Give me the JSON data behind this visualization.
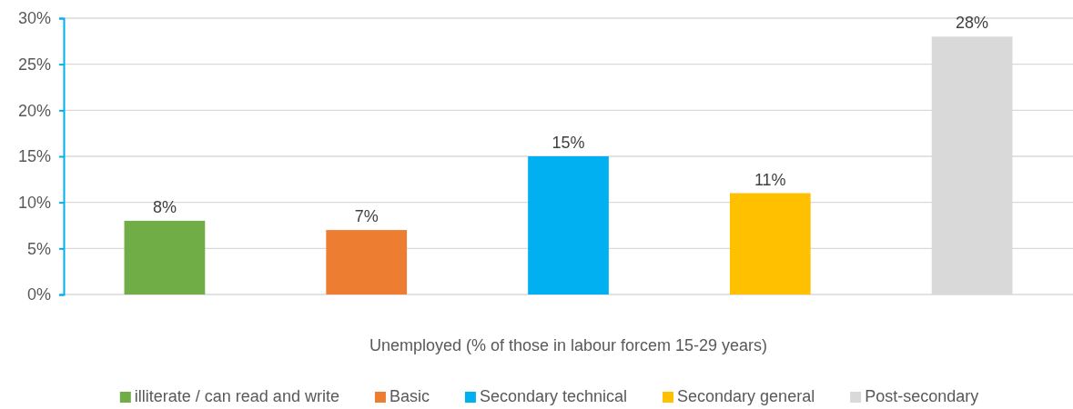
{
  "chart_data": {
    "type": "bar",
    "categories": [
      null
    ],
    "xlabel": "Unemployed (% of those in labour forcem 15-29 years)",
    "series": [
      {
        "name": "illiterate / can read and write",
        "color": "#70ad47",
        "values": [
          8
        ],
        "value_labels": [
          "8%"
        ]
      },
      {
        "name": "Basic",
        "color": "#ed7d31",
        "values": [
          7
        ],
        "value_labels": [
          "7%"
        ]
      },
      {
        "name": "Secondary technical",
        "color": "#00b0f0",
        "values": [
          15
        ],
        "value_labels": [
          "15%"
        ]
      },
      {
        "name": "Secondary general",
        "color": "#ffc000",
        "values": [
          11
        ],
        "value_labels": [
          "11%"
        ]
      },
      {
        "name": "Post-secondary",
        "color": "#d9d9d9",
        "values": [
          28
        ],
        "value_labels": [
          "28%"
        ]
      }
    ],
    "ylim": [
      0,
      30
    ],
    "yticks": [
      {
        "value": 0,
        "label": "0%"
      },
      {
        "value": 5,
        "label": "5%"
      },
      {
        "value": 10,
        "label": "10%"
      },
      {
        "value": 15,
        "label": "15%"
      },
      {
        "value": 20,
        "label": "20%"
      },
      {
        "value": 25,
        "label": "25%"
      },
      {
        "value": 30,
        "label": "30%"
      }
    ],
    "grid": "y",
    "legend": "bottom"
  }
}
